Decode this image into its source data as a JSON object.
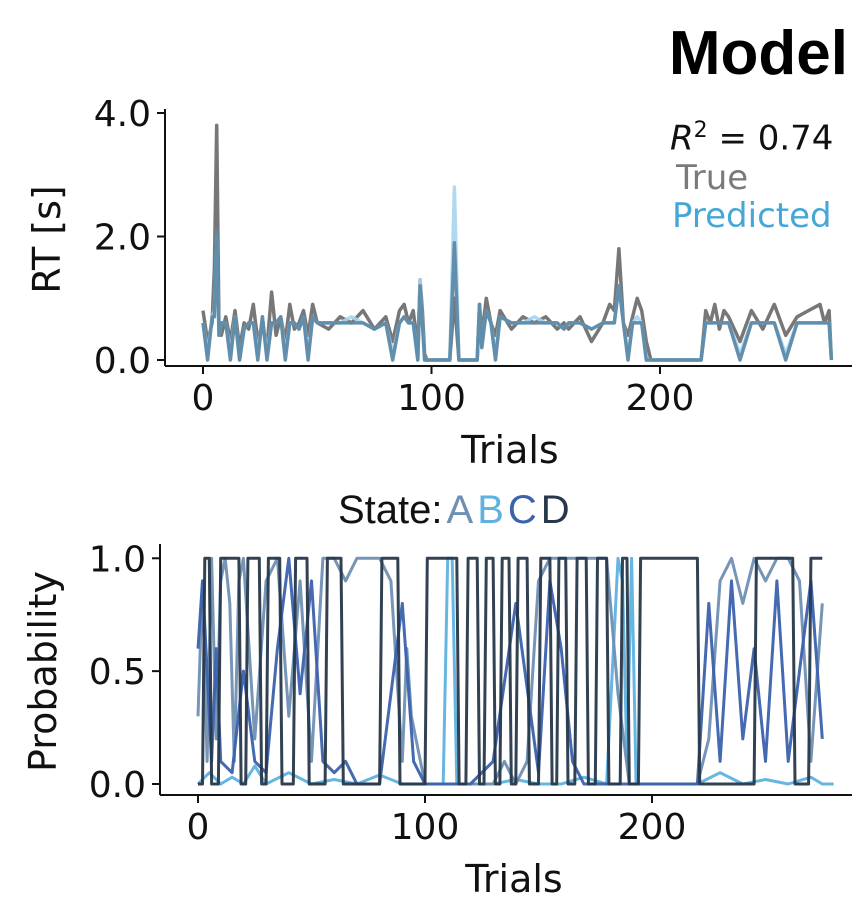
{
  "figure_title": "Model",
  "chart_data": [
    {
      "type": "line",
      "ylabel": "RT [s]",
      "xlabel": "Trials",
      "xlim": [
        -14,
        288
      ],
      "ylim": [
        0,
        4.0
      ],
      "xticks": [
        0,
        100,
        200
      ],
      "xtick_labels": [
        "0",
        "100",
        "200"
      ],
      "yticks": [
        0,
        2.0,
        4.0
      ],
      "ytick_labels": [
        "0.0",
        "2.0",
        "4.0"
      ],
      "annotation": {
        "r2_symbol": "R",
        "r2_exp": "2",
        "r2_value": "= 0.74"
      },
      "series": [
        {
          "name": "True",
          "color": "#707070",
          "x": [
            0,
            2,
            4,
            5,
            6,
            7,
            8,
            10,
            12,
            14,
            16,
            18,
            20,
            22,
            24,
            26,
            28,
            30,
            32,
            34,
            36,
            38,
            40,
            42,
            44,
            46,
            48,
            50,
            55,
            60,
            65,
            70,
            75,
            80,
            83,
            86,
            88,
            90,
            92,
            94,
            95,
            96,
            97,
            98,
            100,
            105,
            108,
            110,
            112,
            115,
            118,
            120,
            121,
            122,
            124,
            126,
            128,
            130,
            135,
            140,
            145,
            150,
            155,
            158,
            160,
            165,
            170,
            175,
            178,
            180,
            182,
            184,
            186,
            188,
            190,
            192,
            194,
            196,
            200,
            210,
            218,
            220,
            222,
            224,
            226,
            228,
            230,
            235,
            240,
            245,
            250,
            255,
            260,
            265,
            270,
            272,
            274,
            275
          ],
          "y": [
            0.8,
            0.3,
            0.6,
            1.5,
            3.8,
            0.5,
            0.4,
            0.7,
            0.3,
            0.8,
            0.2,
            0.6,
            0.5,
            0.9,
            0.3,
            0.6,
            0.2,
            1.1,
            0.4,
            0.7,
            0.3,
            0.9,
            0.5,
            0.6,
            0.8,
            0.4,
            0.9,
            0.6,
            0.5,
            0.7,
            0.6,
            0.8,
            0.5,
            0.7,
            0.3,
            0.8,
            0.9,
            0.6,
            0.8,
            0.2,
            1.3,
            0.8,
            0.1,
            0,
            0,
            0,
            0,
            1.0,
            0,
            0,
            0,
            0,
            0.9,
            0.4,
            1.0,
            0.6,
            0.4,
            0.8,
            0.5,
            0.7,
            0.6,
            0.7,
            0.5,
            0.6,
            0.5,
            0.7,
            0.3,
            0.6,
            0.9,
            0.8,
            1.8,
            0.6,
            0.4,
            0.7,
            1.0,
            0.8,
            0.3,
            0,
            0,
            0,
            0,
            0.8,
            0.6,
            0.9,
            0.5,
            0.8,
            0.7,
            0.3,
            0.8,
            0.5,
            0.9,
            0.4,
            0.7,
            0.8,
            0.9,
            0.6,
            0.8,
            0
          ]
        },
        {
          "name": "Predicted",
          "color": "#a8d4ef",
          "x": [
            0,
            2,
            4,
            5,
            6,
            7,
            8,
            10,
            12,
            14,
            16,
            18,
            20,
            22,
            24,
            26,
            28,
            30,
            32,
            34,
            36,
            38,
            40,
            42,
            44,
            46,
            48,
            50,
            55,
            60,
            65,
            70,
            75,
            80,
            83,
            86,
            88,
            90,
            92,
            94,
            95,
            96,
            97,
            98,
            100,
            105,
            108,
            110,
            112,
            115,
            118,
            120,
            121,
            122,
            124,
            126,
            128,
            130,
            135,
            140,
            145,
            150,
            155,
            158,
            160,
            165,
            170,
            175,
            178,
            180,
            182,
            184,
            186,
            188,
            190,
            192,
            194,
            196,
            200,
            210,
            218,
            220,
            222,
            224,
            226,
            228,
            230,
            235,
            240,
            245,
            250,
            255,
            260,
            265,
            270,
            272,
            274,
            275
          ],
          "y": [
            0.6,
            0.1,
            0.7,
            0.8,
            2.0,
            0.4,
            0.6,
            0.6,
            0.1,
            0.7,
            0,
            0.5,
            0.6,
            0.6,
            0.1,
            0.7,
            0.1,
            0.6,
            0.6,
            0.7,
            0.1,
            0.6,
            0.6,
            0.5,
            0.7,
            0.1,
            0.7,
            0.6,
            0.6,
            0.6,
            0.7,
            0.6,
            0.5,
            0.6,
            0.1,
            0.6,
            0.7,
            0.6,
            0.6,
            0,
            1.3,
            0.6,
            0,
            0,
            0,
            0,
            0,
            2.8,
            0,
            0,
            0,
            0,
            0.9,
            0.2,
            0.8,
            0.6,
            0.1,
            0.7,
            0.6,
            0.6,
            0.7,
            0.6,
            0.6,
            0.5,
            0.6,
            0.6,
            0.5,
            0.6,
            0.6,
            0.6,
            1.2,
            0.6,
            0.1,
            0.6,
            0.7,
            0.6,
            0,
            0,
            0,
            0,
            0,
            0.6,
            0.6,
            0.6,
            0.6,
            0.6,
            0.6,
            0.1,
            0.6,
            0.6,
            0.6,
            0.1,
            0.6,
            0.6,
            0.6,
            0.6,
            0.6,
            0
          ]
        },
        {
          "name": "",
          "color": "#5c8aa8",
          "x": [
            0,
            2,
            4,
            5,
            6,
            7,
            8,
            10,
            12,
            14,
            16,
            18,
            20,
            22,
            24,
            26,
            28,
            30,
            32,
            34,
            36,
            38,
            40,
            42,
            44,
            46,
            48,
            50,
            55,
            60,
            65,
            70,
            75,
            80,
            83,
            86,
            88,
            90,
            92,
            94,
            95,
            96,
            97,
            98,
            100,
            105,
            108,
            110,
            112,
            115,
            118,
            120,
            121,
            122,
            124,
            126,
            128,
            130,
            135,
            140,
            145,
            150,
            155,
            158,
            160,
            165,
            170,
            175,
            178,
            180,
            182,
            184,
            186,
            188,
            190,
            192,
            194,
            196,
            200,
            210,
            218,
            220,
            222,
            224,
            226,
            228,
            230,
            235,
            240,
            245,
            250,
            255,
            260,
            265,
            270,
            272,
            274,
            275
          ],
          "y": [
            0.6,
            0,
            0.7,
            0.7,
            2.1,
            0.4,
            0.6,
            0.6,
            0,
            0.7,
            0,
            0.5,
            0.6,
            0.6,
            0,
            0.7,
            0,
            0.6,
            0.6,
            0.7,
            0,
            0.6,
            0.6,
            0.5,
            0.7,
            0,
            0.7,
            0.6,
            0.6,
            0.6,
            0.6,
            0.6,
            0.5,
            0.6,
            0,
            0.6,
            0.7,
            0.6,
            0.6,
            0,
            1.2,
            0.6,
            0,
            0,
            0,
            0,
            0,
            1.9,
            0,
            0,
            0,
            0,
            0.9,
            0.2,
            0.8,
            0.6,
            0,
            0.7,
            0.6,
            0.6,
            0.6,
            0.6,
            0.6,
            0.5,
            0.6,
            0.6,
            0.5,
            0.6,
            0.6,
            0.6,
            1.2,
            0.6,
            0,
            0.6,
            0.6,
            0.6,
            0,
            0,
            0,
            0,
            0,
            0.6,
            0.6,
            0.6,
            0.6,
            0.6,
            0.6,
            0,
            0.6,
            0.6,
            0.6,
            0,
            0.6,
            0.6,
            0.6,
            0.6,
            0.6,
            0
          ]
        }
      ]
    },
    {
      "type": "line",
      "ylabel": "Probability",
      "xlabel": "Trials",
      "xlim": [
        -16,
        288
      ],
      "ylim": [
        0,
        1.05
      ],
      "xticks": [
        0,
        100,
        200
      ],
      "xtick_labels": [
        "0",
        "100",
        "200"
      ],
      "yticks": [
        0,
        0.5,
        1.0
      ],
      "ytick_labels": [
        "0.0",
        "0.5",
        "1.0"
      ],
      "legend_prefix": "State:",
      "legend_position": "top-center",
      "series": [
        {
          "name": "A",
          "color": "#6f8fb3",
          "x": [
            0,
            2,
            4,
            6,
            8,
            10,
            12,
            14,
            16,
            18,
            20,
            25,
            30,
            35,
            40,
            45,
            50,
            55,
            60,
            65,
            70,
            75,
            80,
            85,
            90,
            92,
            94,
            100,
            105,
            110,
            115,
            118,
            120,
            125,
            130,
            135,
            140,
            145,
            150,
            155,
            160,
            170,
            180,
            185,
            190,
            195,
            200,
            210,
            215,
            220,
            225,
            230,
            235,
            240,
            245,
            250,
            255,
            260,
            265,
            270,
            275
          ],
          "y": [
            0.3,
            0.9,
            0.1,
            1.0,
            0.2,
            0.9,
            1.0,
            0.8,
            0.1,
            0.9,
            1.0,
            0.2,
            0.9,
            1.0,
            0.3,
            0.9,
            0.1,
            1.0,
            1.0,
            0.9,
            1.0,
            1.0,
            1.0,
            0.9,
            0.1,
            0.6,
            0.3,
            0,
            0,
            0,
            0,
            0,
            0,
            0,
            0,
            0.1,
            0,
            0.1,
            0.9,
            1.0,
            1.0,
            1.0,
            1.0,
            0.4,
            0,
            0,
            0,
            0,
            0,
            0,
            0.2,
            0.9,
            1.0,
            0.8,
            1.0,
            0.9,
            1.0,
            1.0,
            0.9,
            0.1,
            0.8
          ]
        },
        {
          "name": "B",
          "color": "#5fb2e0",
          "x": [
            0,
            5,
            10,
            15,
            20,
            25,
            30,
            40,
            50,
            60,
            70,
            80,
            90,
            100,
            108,
            110,
            112,
            114,
            116,
            120,
            130,
            140,
            150,
            160,
            170,
            180,
            185,
            187,
            189,
            191,
            193,
            200,
            210,
            220,
            230,
            240,
            250,
            260,
            270,
            275,
            280
          ],
          "y": [
            0,
            0.05,
            0,
            0.03,
            0,
            0.08,
            0,
            0.05,
            0,
            0.02,
            0,
            0.04,
            0,
            0,
            0,
            1.0,
            1.0,
            0,
            0,
            0,
            0,
            0.02,
            0,
            0,
            0.03,
            0,
            1.0,
            0.9,
            0.1,
            1.0,
            0,
            0,
            0,
            0,
            0.05,
            0,
            0.02,
            0,
            0.03,
            0,
            0
          ]
        },
        {
          "name": "C",
          "color": "#3b62ad",
          "x": [
            0,
            2,
            4,
            6,
            8,
            10,
            15,
            20,
            25,
            30,
            35,
            40,
            45,
            50,
            55,
            60,
            65,
            70,
            80,
            90,
            95,
            100,
            110,
            120,
            130,
            140,
            150,
            155,
            160,
            165,
            170,
            180,
            190,
            200,
            210,
            220,
            225,
            230,
            235,
            240,
            245,
            250,
            255,
            260,
            265,
            270,
            275
          ],
          "y": [
            0.6,
            0.9,
            0.5,
            0.1,
            0.6,
            0.1,
            0.05,
            0.5,
            0.1,
            0.05,
            0.6,
            1.0,
            0.4,
            0.9,
            0.1,
            0.05,
            0.1,
            0,
            0,
            0.8,
            0.1,
            0,
            0,
            0,
            0.1,
            0.8,
            0.05,
            0.9,
            0.6,
            0.1,
            0,
            0,
            0,
            0,
            0,
            0,
            0.8,
            0.1,
            0.9,
            0.2,
            0.6,
            0.1,
            0.9,
            0.1,
            0.5,
            0.9,
            0.2
          ]
        },
        {
          "name": "D",
          "color": "#27384a",
          "x": [
            0,
            2,
            3,
            5,
            6,
            9,
            10,
            18,
            19,
            21,
            22,
            27,
            28,
            30,
            31,
            36,
            37,
            42,
            43,
            48,
            49,
            56,
            57,
            63,
            64,
            80,
            81,
            88,
            89,
            100,
            101,
            114,
            115,
            118,
            119,
            123,
            124,
            126,
            127,
            130,
            131,
            133,
            134,
            137,
            138,
            140,
            141,
            145,
            146,
            150,
            151,
            155,
            156,
            158,
            159,
            162,
            163,
            166,
            167,
            171,
            172,
            175,
            176,
            180,
            181,
            186,
            187,
            189,
            190,
            194,
            195,
            220,
            221,
            245,
            246,
            262,
            263,
            269,
            270,
            275
          ],
          "y": [
            0,
            0,
            1.0,
            1.0,
            0,
            0,
            1.0,
            1.0,
            0,
            0,
            1.0,
            1.0,
            0,
            0,
            1.0,
            1.0,
            0,
            0,
            1.0,
            1.0,
            0,
            0,
            1.0,
            1.0,
            0,
            0,
            1.0,
            1.0,
            0,
            0,
            1.0,
            1.0,
            0,
            0,
            1.0,
            1.0,
            0,
            0,
            1.0,
            1.0,
            0,
            0,
            1.0,
            1.0,
            0,
            0,
            1.0,
            1.0,
            0,
            0,
            1.0,
            1.0,
            0,
            0,
            1.0,
            1.0,
            0,
            0,
            1.0,
            1.0,
            0,
            0,
            1.0,
            1.0,
            0,
            0,
            1.0,
            1.0,
            0,
            0,
            1.0,
            1.0,
            0,
            0,
            1.0,
            1.0,
            0,
            0,
            1.0,
            1.0
          ]
        }
      ]
    }
  ]
}
